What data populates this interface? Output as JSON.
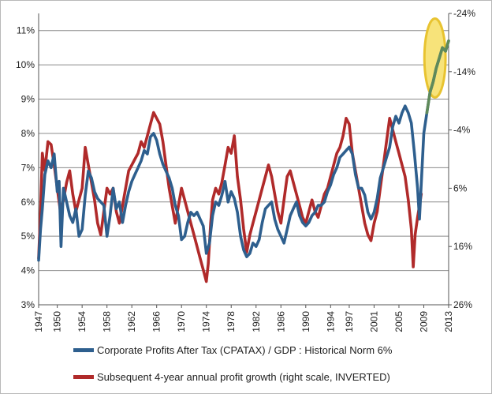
{
  "chart_data": {
    "type": "line",
    "title": "",
    "xlabel": "",
    "ylabel_left": "",
    "ylabel_right": "",
    "x_range": [
      1947,
      2013
    ],
    "x_ticks": [
      "1947",
      "1950",
      "1954",
      "1958",
      "1962",
      "1966",
      "1970",
      "1974",
      "1978",
      "1982",
      "1986",
      "1990",
      "1994",
      "1997",
      "2001",
      "2005",
      "2009",
      "2013"
    ],
    "y_left": {
      "min": 3,
      "max": 11.5,
      "ticks": [
        "3%",
        "4%",
        "5%",
        "6%",
        "7%",
        "8%",
        "9%",
        "10%",
        "11%"
      ]
    },
    "y_right": {
      "inverted": true,
      "min": -24,
      "max": 26,
      "ticks": [
        "-24%",
        "-14%",
        "-4%",
        "6%",
        "16%",
        "26%"
      ]
    },
    "grid": "horizontal",
    "legend_placement": "bottom",
    "colors": {
      "profits": "#2e5f8e",
      "growth": "#b02a2a",
      "highlight_fill": "#f7e37a",
      "highlight_stroke": "#e8c330",
      "highlight_line": "#5f8a5a"
    },
    "series": [
      {
        "name": "Corporate Profits After Tax (CPATAX) / GDP : Historical Norm 6%",
        "axis": "left",
        "points": [
          [
            1947,
            4.3
          ],
          [
            1947.3,
            5.2
          ],
          [
            1947.6,
            5.8
          ],
          [
            1948,
            6.8
          ],
          [
            1948.5,
            7.2
          ],
          [
            1949,
            7.0
          ],
          [
            1949.5,
            7.4
          ],
          [
            1950,
            6.3
          ],
          [
            1950.3,
            6.6
          ],
          [
            1950.6,
            4.7
          ],
          [
            1951,
            6.4
          ],
          [
            1951.5,
            6.0
          ],
          [
            1952,
            5.6
          ],
          [
            1952.5,
            5.4
          ],
          [
            1953,
            5.8
          ],
          [
            1953.5,
            5.0
          ],
          [
            1954,
            5.2
          ],
          [
            1954.5,
            6.2
          ],
          [
            1955,
            6.9
          ],
          [
            1955.5,
            6.7
          ],
          [
            1956,
            6.3
          ],
          [
            1956.5,
            6.1
          ],
          [
            1957,
            6.0
          ],
          [
            1957.5,
            5.9
          ],
          [
            1958,
            5.0
          ],
          [
            1958.5,
            5.6
          ],
          [
            1959,
            6.4
          ],
          [
            1959.5,
            5.8
          ],
          [
            1960,
            6.0
          ],
          [
            1960.5,
            5.4
          ],
          [
            1961,
            5.9
          ],
          [
            1961.5,
            6.3
          ],
          [
            1962,
            6.6
          ],
          [
            1962.5,
            6.8
          ],
          [
            1963,
            7.0
          ],
          [
            1963.5,
            7.2
          ],
          [
            1964,
            7.5
          ],
          [
            1964.5,
            7.4
          ],
          [
            1965,
            7.9
          ],
          [
            1965.5,
            8.0
          ],
          [
            1966,
            7.8
          ],
          [
            1966.5,
            7.4
          ],
          [
            1967,
            7.1
          ],
          [
            1967.5,
            6.9
          ],
          [
            1968,
            6.7
          ],
          [
            1968.5,
            6.4
          ],
          [
            1969,
            5.9
          ],
          [
            1969.5,
            5.6
          ],
          [
            1970,
            4.9
          ],
          [
            1970.5,
            5.0
          ],
          [
            1971,
            5.4
          ],
          [
            1971.5,
            5.7
          ],
          [
            1972,
            5.6
          ],
          [
            1972.5,
            5.7
          ],
          [
            1973,
            5.5
          ],
          [
            1973.5,
            5.3
          ],
          [
            1974,
            4.5
          ],
          [
            1974.5,
            4.8
          ],
          [
            1975,
            5.6
          ],
          [
            1975.5,
            6.0
          ],
          [
            1976,
            5.9
          ],
          [
            1976.5,
            6.2
          ],
          [
            1977,
            6.6
          ],
          [
            1977.5,
            6.0
          ],
          [
            1978,
            6.3
          ],
          [
            1978.5,
            6.1
          ],
          [
            1979,
            5.7
          ],
          [
            1979.5,
            5.0
          ],
          [
            1980,
            4.6
          ],
          [
            1980.5,
            4.4
          ],
          [
            1981,
            4.5
          ],
          [
            1981.5,
            4.8
          ],
          [
            1982,
            4.7
          ],
          [
            1982.5,
            4.9
          ],
          [
            1983,
            5.4
          ],
          [
            1983.5,
            5.8
          ],
          [
            1984,
            5.9
          ],
          [
            1984.5,
            6.0
          ],
          [
            1985,
            5.5
          ],
          [
            1985.5,
            5.2
          ],
          [
            1986,
            5.0
          ],
          [
            1986.5,
            4.8
          ],
          [
            1987,
            5.2
          ],
          [
            1987.5,
            5.6
          ],
          [
            1988,
            5.8
          ],
          [
            1988.5,
            6.0
          ],
          [
            1989,
            5.6
          ],
          [
            1989.5,
            5.4
          ],
          [
            1990,
            5.3
          ],
          [
            1990.5,
            5.4
          ],
          [
            1991,
            5.6
          ],
          [
            1991.5,
            5.7
          ],
          [
            1992,
            5.9
          ],
          [
            1992.5,
            5.9
          ],
          [
            1993,
            6.0
          ],
          [
            1993.5,
            6.3
          ],
          [
            1994,
            6.5
          ],
          [
            1994.5,
            6.8
          ],
          [
            1995,
            7.0
          ],
          [
            1995.5,
            7.3
          ],
          [
            1996,
            7.4
          ],
          [
            1996.5,
            7.5
          ],
          [
            1997,
            7.6
          ],
          [
            1997.5,
            7.4
          ],
          [
            1998,
            6.8
          ],
          [
            1998.5,
            6.4
          ],
          [
            1999,
            6.4
          ],
          [
            1999.5,
            6.2
          ],
          [
            2000,
            5.7
          ],
          [
            2000.5,
            5.5
          ],
          [
            2001,
            5.7
          ],
          [
            2001.5,
            6.1
          ],
          [
            2002,
            6.7
          ],
          [
            2002.5,
            7.0
          ],
          [
            2003,
            7.3
          ],
          [
            2003.5,
            7.6
          ],
          [
            2004,
            8.2
          ],
          [
            2004.5,
            8.5
          ],
          [
            2005,
            8.3
          ],
          [
            2005.5,
            8.6
          ],
          [
            2006,
            8.8
          ],
          [
            2006.5,
            8.6
          ],
          [
            2007,
            8.3
          ],
          [
            2007.5,
            7.4
          ],
          [
            2008,
            6.4
          ],
          [
            2008.3,
            5.5
          ],
          [
            2008.7,
            6.9
          ],
          [
            2009,
            8.0
          ],
          [
            2009.5,
            8.6
          ],
          [
            2010,
            9.2
          ],
          [
            2010.5,
            9.5
          ],
          [
            2011,
            9.9
          ],
          [
            2011.5,
            10.2
          ],
          [
            2012,
            10.5
          ],
          [
            2012.5,
            10.4
          ],
          [
            2013,
            10.7
          ]
        ]
      },
      {
        "name": "Subsequent 4-year annual profit growth (right scale, INVERTED)",
        "axis": "right",
        "points": [
          [
            1947,
            18.0
          ],
          [
            1947.3,
            10.0
          ],
          [
            1947.6,
            0.0
          ],
          [
            1948,
            3.0
          ],
          [
            1948.5,
            -2.0
          ],
          [
            1949,
            -1.5
          ],
          [
            1949.5,
            2.0
          ],
          [
            1950,
            6.0
          ],
          [
            1950.5,
            10.0
          ],
          [
            1951,
            8.0
          ],
          [
            1951.5,
            5.0
          ],
          [
            1952,
            3.0
          ],
          [
            1952.5,
            7.0
          ],
          [
            1953,
            10.0
          ],
          [
            1953.5,
            8.0
          ],
          [
            1954,
            6.0
          ],
          [
            1954.5,
            -1.0
          ],
          [
            1955,
            2.0
          ],
          [
            1955.5,
            5.0
          ],
          [
            1956,
            8.0
          ],
          [
            1956.5,
            12.0
          ],
          [
            1957,
            14.0
          ],
          [
            1957.5,
            10.0
          ],
          [
            1958,
            6.0
          ],
          [
            1958.5,
            7.0
          ],
          [
            1959,
            6.0
          ],
          [
            1959.5,
            10.0
          ],
          [
            1960,
            12.0
          ],
          [
            1960.5,
            9.0
          ],
          [
            1961,
            6.0
          ],
          [
            1961.5,
            3.0
          ],
          [
            1962,
            2.0
          ],
          [
            1962.5,
            1.0
          ],
          [
            1963,
            0.0
          ],
          [
            1963.5,
            -2.0
          ],
          [
            1964,
            -1.0
          ],
          [
            1964.5,
            -3.0
          ],
          [
            1965,
            -5.0
          ],
          [
            1965.5,
            -7.0
          ],
          [
            1966,
            -6.0
          ],
          [
            1966.5,
            -5.0
          ],
          [
            1967,
            -2.0
          ],
          [
            1967.5,
            2.0
          ],
          [
            1968,
            6.0
          ],
          [
            1968.5,
            9.0
          ],
          [
            1969,
            12.0
          ],
          [
            1969.5,
            9.0
          ],
          [
            1970,
            6.0
          ],
          [
            1970.5,
            8.0
          ],
          [
            1971,
            10.0
          ],
          [
            1971.5,
            12.0
          ],
          [
            1972,
            14.0
          ],
          [
            1972.5,
            16.0
          ],
          [
            1973,
            18.0
          ],
          [
            1973.5,
            20.0
          ],
          [
            1974,
            22.0
          ],
          [
            1974.3,
            19.0
          ],
          [
            1974.7,
            12.0
          ],
          [
            1975,
            8.0
          ],
          [
            1975.5,
            6.0
          ],
          [
            1976,
            7.0
          ],
          [
            1976.5,
            5.0
          ],
          [
            1977,
            2.0
          ],
          [
            1977.5,
            -1.0
          ],
          [
            1978,
            0.0
          ],
          [
            1978.5,
            -3.0
          ],
          [
            1979,
            4.0
          ],
          [
            1979.5,
            8.0
          ],
          [
            1980,
            13.0
          ],
          [
            1980.5,
            17.0
          ],
          [
            1981,
            14.0
          ],
          [
            1981.5,
            12.0
          ],
          [
            1982,
            10.0
          ],
          [
            1982.5,
            8.0
          ],
          [
            1983,
            6.0
          ],
          [
            1983.5,
            4.0
          ],
          [
            1984,
            2.0
          ],
          [
            1984.5,
            4.0
          ],
          [
            1985,
            7.0
          ],
          [
            1985.5,
            10.0
          ],
          [
            1986,
            12.0
          ],
          [
            1986.5,
            8.0
          ],
          [
            1987,
            4.0
          ],
          [
            1987.5,
            3.0
          ],
          [
            1988,
            5.0
          ],
          [
            1988.5,
            7.0
          ],
          [
            1989,
            9.0
          ],
          [
            1989.5,
            11.0
          ],
          [
            1990,
            12.0
          ],
          [
            1990.5,
            10.0
          ],
          [
            1991,
            8.0
          ],
          [
            1991.5,
            10.0
          ],
          [
            1992,
            11.0
          ],
          [
            1992.5,
            9.0
          ],
          [
            1993,
            7.0
          ],
          [
            1993.5,
            6.0
          ],
          [
            1994,
            4.0
          ],
          [
            1994.5,
            2.0
          ],
          [
            1995,
            0.0
          ],
          [
            1995.5,
            -1.0
          ],
          [
            1996,
            -3.0
          ],
          [
            1996.5,
            -6.0
          ],
          [
            1997,
            -5.0
          ],
          [
            1997.5,
            0.0
          ],
          [
            1998,
            3.0
          ],
          [
            1998.5,
            6.0
          ],
          [
            1999,
            9.0
          ],
          [
            1999.5,
            12.0
          ],
          [
            2000,
            14.0
          ],
          [
            2000.5,
            15.0
          ],
          [
            2001,
            12.0
          ],
          [
            2001.5,
            10.0
          ],
          [
            2002,
            6.0
          ],
          [
            2002.5,
            2.0
          ],
          [
            2003,
            -2.0
          ],
          [
            2003.5,
            -6.0
          ],
          [
            2004,
            -4.0
          ],
          [
            2004.5,
            -2.0
          ],
          [
            2005,
            0.0
          ],
          [
            2005.5,
            2.0
          ],
          [
            2006,
            4.0
          ],
          [
            2006.5,
            8.0
          ],
          [
            2007,
            13.0
          ],
          [
            2007.3,
            19.5
          ],
          [
            2007.6,
            14.0
          ],
          [
            2008,
            11.0
          ],
          [
            2008.3,
            9.0
          ],
          [
            2008.6,
            7.0
          ]
        ]
      }
    ],
    "annotation": {
      "type": "highlight-ellipse",
      "center": [
        2010.8,
        10.2
      ],
      "radius_years": 1.7,
      "radius_pct": 1.15
    }
  }
}
